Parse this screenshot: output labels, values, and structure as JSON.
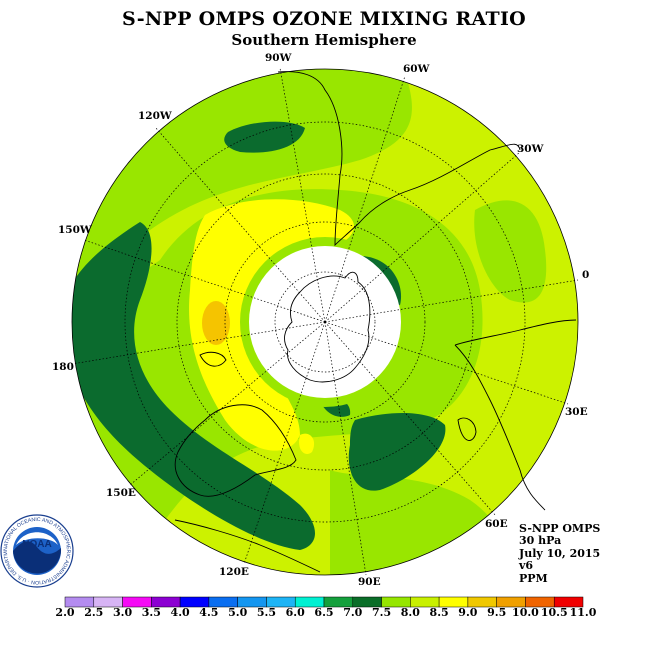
{
  "title": "S-NPP OMPS OZONE MIXING RATIO",
  "subtitle": "Southern Hemisphere",
  "map": {
    "projection": "polar-stereographic-south",
    "longitude_labels": [
      "90W",
      "60W",
      "30W",
      "0",
      "30E",
      "60E",
      "90E",
      "120E",
      "150E",
      "180",
      "150W",
      "120W"
    ],
    "fill_colors": {
      "6.5": "#1a9a3a",
      "7.0": "#0b6b2e",
      "7.5": "#99e600",
      "8.0": "#ccf200",
      "8.5": "#ffff00",
      "9.0": "#f5c400",
      "polar_night": "#ffffff",
      "land_outline": "#000000"
    }
  },
  "info": {
    "instrument": "S-NPP OMPS",
    "level": "30 hPa",
    "date": "July 10, 2015",
    "version": "v6",
    "units": "PPM"
  },
  "colorbar": {
    "labels": [
      "2.0",
      "2.5",
      "3.0",
      "3.5",
      "4.0",
      "4.5",
      "5.0",
      "5.5",
      "6.0",
      "6.5",
      "7.0",
      "7.5",
      "8.0",
      "8.5",
      "9.0",
      "9.5",
      "10.0",
      "10.5",
      "11.0"
    ],
    "colors": [
      "#b48cf0",
      "#d7b4f5",
      "#f50af5",
      "#8c00d2",
      "#0000ff",
      "#0a6ef0",
      "#1496f0",
      "#1eb4f5",
      "#00f0d2",
      "#14a03c",
      "#0a6e28",
      "#96e600",
      "#c8f000",
      "#ffff00",
      "#f0c800",
      "#f0a000",
      "#f06400",
      "#f00000",
      "#8c5a3c"
    ]
  },
  "logo": {
    "text": "NOAA",
    "ring_text": "NATIONAL OCEANIC AND ATMOSPHERIC ADMINISTRATION · U.S. DEPARTMENT OF COMMERCE"
  }
}
